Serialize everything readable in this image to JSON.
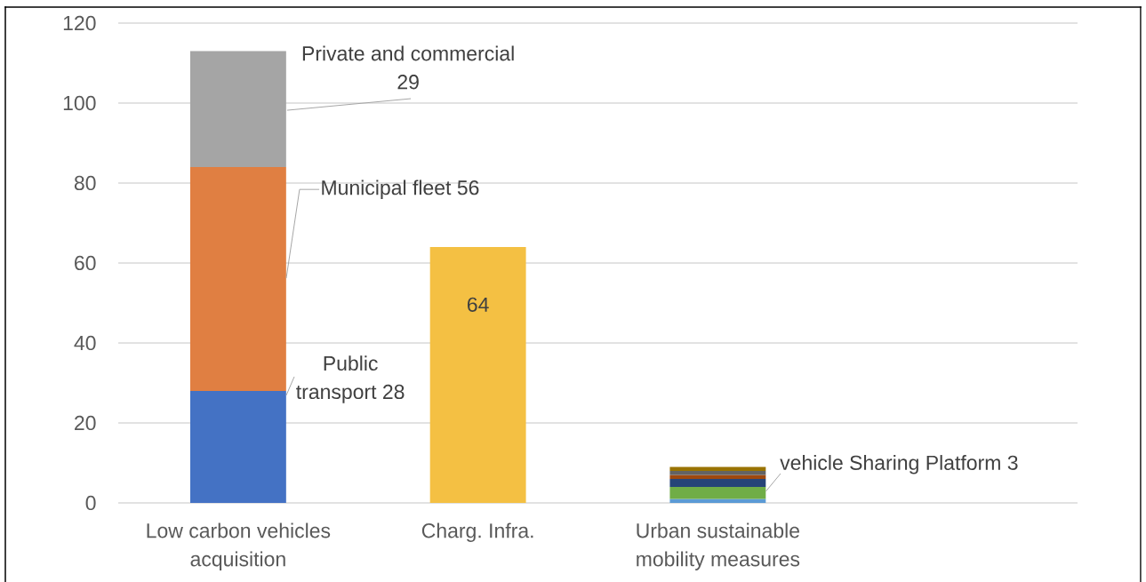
{
  "chart_data": {
    "type": "bar",
    "stacked": true,
    "categories": [
      "Low carbon vehicles acquisition",
      "Charg. Infra.",
      "Urban sustainable mobility measures"
    ],
    "series": [
      {
        "color": "#4472c4",
        "values": [
          28,
          null,
          null
        ],
        "value_labels": [
          "Public transport 28",
          null,
          null
        ]
      },
      {
        "color": "#e07f42",
        "values": [
          56,
          null,
          null
        ],
        "value_labels": [
          "Municipal fleet 56",
          null,
          null
        ]
      },
      {
        "color": "#a5a5a5",
        "values": [
          29,
          null,
          null
        ],
        "value_labels": [
          "Private and commercial 29",
          null,
          null
        ]
      },
      {
        "color": "#f4c043",
        "values": [
          null,
          64,
          null
        ],
        "value_labels": [
          null,
          "64",
          null
        ]
      },
      {
        "color": "#5b9bd5",
        "values": [
          null,
          null,
          1
        ]
      },
      {
        "color": "#70ad47",
        "values": [
          null,
          null,
          3
        ],
        "value_labels": [
          null,
          null,
          "vehicle Sharing Platform 3"
        ]
      },
      {
        "color": "#264478",
        "values": [
          null,
          null,
          2
        ]
      },
      {
        "color": "#9e480e",
        "values": [
          null,
          null,
          1
        ]
      },
      {
        "color": "#636363",
        "values": [
          null,
          null,
          1
        ]
      },
      {
        "color": "#997300",
        "values": [
          null,
          null,
          1
        ]
      }
    ],
    "ylim": [
      0,
      120
    ],
    "yticks": [
      0,
      20,
      40,
      60,
      80,
      100,
      120
    ],
    "grid": "y"
  }
}
